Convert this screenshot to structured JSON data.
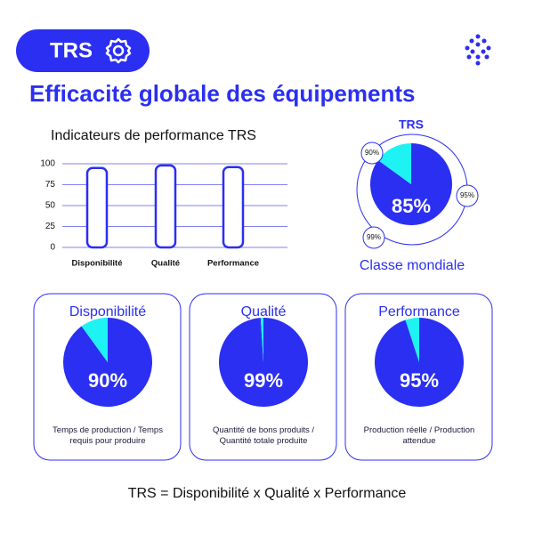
{
  "header": {
    "badge": "TRS",
    "title": "Efficacité globale des équipements"
  },
  "chart_data": [
    {
      "type": "bar",
      "title": "Indicateurs de performance TRS",
      "categories": [
        "Disponibilité",
        "Qualité",
        "Performance"
      ],
      "values": [
        95,
        98,
        96
      ],
      "color": "#2b2ff2",
      "ylim": [
        0,
        100
      ],
      "yticks": [
        0,
        25,
        50,
        75,
        100
      ],
      "grid": true
    },
    {
      "type": "pie",
      "title": "TRS",
      "values": [
        85,
        15
      ],
      "value_labels": [
        "85%",
        null
      ],
      "colors": [
        "#2b2ff2",
        "#1ff2f2"
      ],
      "annotations": [
        "90%",
        "95%",
        "99%"
      ],
      "subtitle": "Classe mondiale"
    },
    {
      "type": "pie",
      "title": "Disponibilité",
      "values": [
        90,
        10
      ],
      "value_labels": [
        "90%",
        null
      ],
      "colors": [
        "#2b2ff2",
        "#1ff2f2"
      ],
      "caption": "Temps de production / Temps requis pour produire"
    },
    {
      "type": "pie",
      "title": "Qualité",
      "values": [
        99,
        1
      ],
      "value_labels": [
        "99%",
        null
      ],
      "colors": [
        "#2b2ff2",
        "#1ff2f2"
      ],
      "caption": "Quantité de bons produits / Quantité totale produite"
    },
    {
      "type": "pie",
      "title": "Performance",
      "values": [
        95,
        5
      ],
      "value_labels": [
        "95%",
        null
      ],
      "colors": [
        "#2b2ff2",
        "#1ff2f2"
      ],
      "caption": "Production réelle / Production attendue"
    }
  ],
  "footer": "TRS = Disponibilité x Qualité x Performance"
}
